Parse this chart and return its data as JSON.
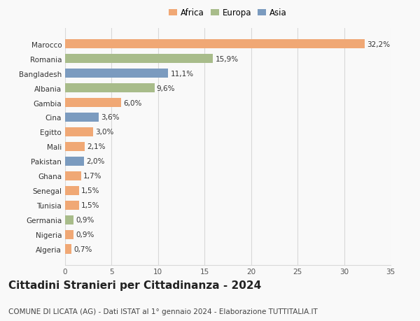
{
  "countries": [
    "Algeria",
    "Nigeria",
    "Germania",
    "Tunisia",
    "Senegal",
    "Ghana",
    "Pakistan",
    "Mali",
    "Egitto",
    "Cina",
    "Gambia",
    "Albania",
    "Bangladesh",
    "Romania",
    "Marocco"
  ],
  "values": [
    0.7,
    0.9,
    0.9,
    1.5,
    1.5,
    1.7,
    2.0,
    2.1,
    3.0,
    3.6,
    6.0,
    9.6,
    11.1,
    15.9,
    32.2
  ],
  "labels": [
    "0,7%",
    "0,9%",
    "0,9%",
    "1,5%",
    "1,5%",
    "1,7%",
    "2,0%",
    "2,1%",
    "3,0%",
    "3,6%",
    "6,0%",
    "9,6%",
    "11,1%",
    "15,9%",
    "32,2%"
  ],
  "colors": [
    "#f0a875",
    "#f0a875",
    "#a8bc8a",
    "#f0a875",
    "#f0a875",
    "#f0a875",
    "#7b9bbf",
    "#f0a875",
    "#f0a875",
    "#7b9bbf",
    "#f0a875",
    "#a8bc8a",
    "#7b9bbf",
    "#a8bc8a",
    "#f0a875"
  ],
  "legend_labels": [
    "Africa",
    "Europa",
    "Asia"
  ],
  "legend_colors": [
    "#f0a875",
    "#a8bc8a",
    "#7b9bbf"
  ],
  "title": "Cittadini Stranieri per Cittadinanza - 2024",
  "subtitle": "COMUNE DI LICATA (AG) - Dati ISTAT al 1° gennaio 2024 - Elaborazione TUTTITALIA.IT",
  "xlim": [
    0,
    35
  ],
  "xticks": [
    0,
    5,
    10,
    15,
    20,
    25,
    30,
    35
  ],
  "background_color": "#f9f9f9",
  "grid_color": "#d8d8d8",
  "bar_height": 0.65,
  "label_fontsize": 7.5,
  "tick_fontsize": 7.5,
  "title_fontsize": 11,
  "subtitle_fontsize": 7.5
}
